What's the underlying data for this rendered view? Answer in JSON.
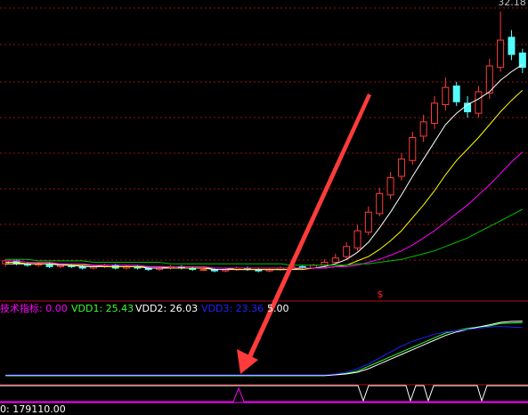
{
  "chart_data": {
    "type": "candlestick",
    "price_label": "32.18",
    "marker": "$",
    "volume_label": "0: 179110.00",
    "ylim": [
      12,
      33
    ],
    "up_color": "#ff3c3c",
    "down_color": "#54fcfc",
    "open": [
      14.6,
      14.8,
      14.6,
      14.5,
      14.6,
      14.4,
      14.5,
      14.4,
      14.3,
      14.4,
      14.5,
      14.3,
      14.4,
      14.3,
      14.2,
      14.3,
      14.4,
      14.3,
      14.2,
      14.2,
      14.1,
      14.2,
      14.3,
      14.2,
      14.1,
      14.2,
      14.3,
      14.4,
      14.3,
      14.5,
      14.7,
      15.1,
      15.7,
      16.8,
      18.1,
      19.4,
      20.7,
      21.8,
      23.5,
      24.4,
      25.7,
      27.0,
      25.8,
      25.1,
      26.5,
      28.3,
      30.4,
      29.3
    ],
    "high": [
      14.9,
      14.9,
      14.7,
      14.7,
      14.7,
      14.6,
      14.6,
      14.5,
      14.5,
      14.6,
      14.6,
      14.5,
      14.5,
      14.4,
      14.4,
      14.5,
      14.5,
      14.4,
      14.3,
      14.3,
      14.3,
      14.4,
      14.4,
      14.3,
      14.3,
      14.4,
      14.5,
      14.5,
      14.6,
      14.9,
      15.3,
      16.1,
      17.3,
      18.6,
      19.9,
      21.0,
      22.3,
      23.8,
      25.0,
      26.3,
      27.6,
      27.3,
      26.3,
      27.0,
      28.9,
      32.18,
      30.9,
      29.6
    ],
    "low": [
      14.4,
      14.5,
      14.4,
      14.4,
      14.3,
      14.3,
      14.3,
      14.2,
      14.2,
      14.3,
      14.2,
      14.2,
      14.2,
      14.1,
      14.1,
      14.2,
      14.2,
      14.1,
      14.1,
      14.0,
      14.0,
      14.1,
      14.1,
      14.0,
      14.0,
      14.1,
      14.2,
      14.2,
      14.2,
      14.4,
      14.6,
      14.9,
      15.5,
      16.6,
      17.9,
      19.1,
      20.4,
      21.5,
      23.1,
      24.0,
      25.3,
      25.6,
      24.8,
      24.8,
      26.1,
      28.0,
      28.8,
      27.9
    ],
    "close": [
      14.8,
      14.6,
      14.5,
      14.6,
      14.4,
      14.5,
      14.4,
      14.3,
      14.4,
      14.5,
      14.3,
      14.4,
      14.3,
      14.2,
      14.3,
      14.4,
      14.3,
      14.2,
      14.2,
      14.1,
      14.2,
      14.3,
      14.2,
      14.1,
      14.2,
      14.3,
      14.4,
      14.3,
      14.5,
      14.7,
      15.0,
      15.8,
      16.9,
      18.2,
      19.5,
      20.6,
      21.9,
      23.4,
      24.5,
      25.8,
      26.9,
      25.9,
      25.2,
      26.6,
      28.4,
      30.2,
      29.2,
      28.3
    ],
    "series": [
      {
        "color": "#ffffff",
        "values": [
          14.6,
          14.6,
          14.6,
          14.6,
          14.6,
          14.5,
          14.5,
          14.4,
          14.4,
          14.4,
          14.4,
          14.4,
          14.4,
          14.3,
          14.3,
          14.3,
          14.3,
          14.3,
          14.3,
          14.2,
          14.2,
          14.2,
          14.2,
          14.2,
          14.2,
          14.2,
          14.2,
          14.3,
          14.3,
          14.4,
          14.6,
          14.9,
          15.4,
          16.1,
          17.1,
          18.2,
          19.4,
          20.7,
          21.9,
          23.1,
          24.3,
          25.1,
          25.7,
          26.1,
          26.6,
          27.4,
          28.0,
          28.5
        ]
      },
      {
        "color": "#ffff00",
        "values": [
          14.7,
          14.7,
          14.6,
          14.6,
          14.6,
          14.6,
          14.5,
          14.5,
          14.5,
          14.4,
          14.4,
          14.4,
          14.4,
          14.4,
          14.4,
          14.3,
          14.3,
          14.3,
          14.3,
          14.3,
          14.3,
          14.2,
          14.2,
          14.2,
          14.2,
          14.2,
          14.2,
          14.2,
          14.3,
          14.3,
          14.4,
          14.5,
          14.8,
          15.1,
          15.6,
          16.2,
          16.9,
          17.8,
          18.7,
          19.7,
          20.8,
          21.8,
          22.6,
          23.4,
          24.3,
          25.2,
          26.0,
          26.7
        ]
      },
      {
        "color": "#ff00ff",
        "values": [
          14.8,
          14.8,
          14.7,
          14.7,
          14.7,
          14.6,
          14.6,
          14.6,
          14.5,
          14.5,
          14.5,
          14.5,
          14.5,
          14.4,
          14.4,
          14.4,
          14.4,
          14.4,
          14.4,
          14.3,
          14.3,
          14.3,
          14.3,
          14.3,
          14.3,
          14.3,
          14.3,
          14.3,
          14.3,
          14.3,
          14.4,
          14.4,
          14.5,
          14.7,
          14.9,
          15.2,
          15.5,
          15.9,
          16.4,
          16.9,
          17.5,
          18.1,
          18.7,
          19.4,
          20.1,
          20.9,
          21.7,
          22.4
        ]
      },
      {
        "color": "#00c000",
        "values": [
          14.9,
          14.9,
          14.9,
          14.8,
          14.8,
          14.8,
          14.8,
          14.8,
          14.7,
          14.7,
          14.7,
          14.7,
          14.7,
          14.7,
          14.7,
          14.6,
          14.6,
          14.6,
          14.6,
          14.6,
          14.6,
          14.6,
          14.6,
          14.6,
          14.6,
          14.6,
          14.5,
          14.5,
          14.5,
          14.5,
          14.5,
          14.5,
          14.6,
          14.6,
          14.7,
          14.8,
          14.9,
          15.1,
          15.3,
          15.5,
          15.8,
          16.1,
          16.4,
          16.8,
          17.2,
          17.6,
          18.0,
          18.4
        ]
      }
    ],
    "indicator": {
      "ylim": [
        0,
        30
      ],
      "header": [
        {
          "text": "技术指标: 0.00",
          "color": "#ff00ff"
        },
        {
          "text": "VDD1: 25.43",
          "color": "#33ff33"
        },
        {
          "text": "VDD2: 26.03",
          "color": "#ffffff"
        },
        {
          "text": "VDD3: 23.36",
          "color": "#2020ff"
        },
        {
          "text": "5.00",
          "color": "#ffffff"
        }
      ],
      "series": [
        {
          "color": "#33ff33",
          "values": [
            3,
            3,
            3,
            3,
            3,
            3,
            3,
            3,
            3,
            3,
            3,
            3,
            3,
            3,
            3,
            3,
            3,
            3,
            3,
            3,
            3,
            3,
            3,
            3,
            3,
            3,
            3,
            3,
            3,
            3,
            3.5,
            4,
            5,
            7,
            9,
            11,
            13,
            15,
            17,
            19,
            21,
            22,
            23,
            23.5,
            24,
            25,
            25.2,
            25.43
          ]
        },
        {
          "color": "#ffffff",
          "values": [
            3.2,
            3.2,
            3.2,
            3.2,
            3.2,
            3.2,
            3.2,
            3.2,
            3.2,
            3.2,
            3.2,
            3.2,
            3.2,
            3.2,
            3.2,
            3.2,
            3.2,
            3.2,
            3.2,
            3.2,
            3.2,
            3.2,
            3.2,
            3.2,
            3.2,
            3.2,
            3.2,
            3.2,
            3.2,
            3.2,
            3.4,
            3.8,
            4.5,
            6,
            8,
            10,
            12,
            14,
            16,
            18,
            20,
            21.5,
            22.5,
            23.5,
            24.5,
            25.5,
            25.9,
            26.03
          ]
        },
        {
          "color": "#2020ff",
          "values": [
            3.4,
            3.4,
            3.4,
            3.4,
            3.4,
            3.4,
            3.4,
            3.4,
            3.4,
            3.4,
            3.4,
            3.4,
            3.4,
            3.4,
            3.4,
            3.4,
            3.4,
            3.4,
            3.4,
            3.4,
            3.4,
            3.4,
            3.4,
            3.4,
            3.4,
            3.4,
            3.4,
            3.4,
            3.4,
            3.4,
            3.8,
            4.5,
            6,
            8,
            10.5,
            13,
            15.5,
            17.5,
            19,
            20.5,
            21.5,
            22,
            22.5,
            23,
            23.5,
            23.8,
            23.5,
            23.36
          ]
        }
      ]
    }
  }
}
